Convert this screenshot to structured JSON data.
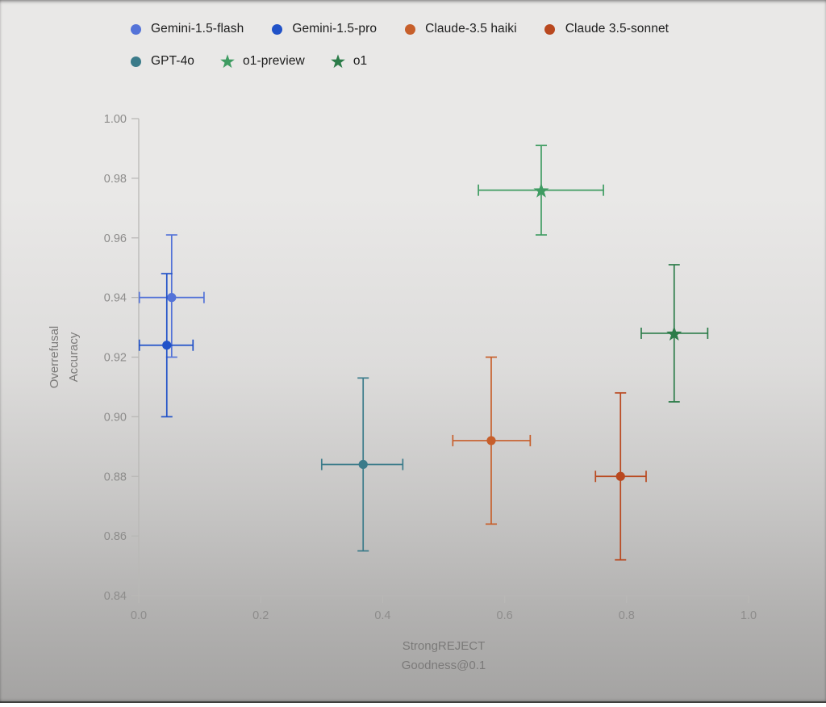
{
  "page": {
    "background_top": "#e9e8e7",
    "background_bottom": "#a4a3a2",
    "bottom_edge": "#343433"
  },
  "style": {
    "axis_line_color": "#b9b8b6",
    "tick_label_color": "#8d8c8b",
    "axis_title_color": "#7b7a79",
    "legend_text_color": "#1c1c1c"
  },
  "legend": {
    "rows": [
      [
        0,
        1,
        2,
        3
      ],
      [
        4,
        5,
        6
      ]
    ]
  },
  "chart_data": {
    "type": "scatter",
    "title": "",
    "xlabel": "StrongREJECT Goodness@0.1",
    "xlabel_lines": [
      "StrongREJECT",
      "Goodness@0.1"
    ],
    "ylabel": "Overrefusal Accuracy",
    "ylabel_lines": [
      "Overrefusal",
      "Accuracy"
    ],
    "xlim": [
      0.0,
      1.0
    ],
    "ylim": [
      0.84,
      1.0
    ],
    "x_ticks": [
      0.0,
      0.2,
      0.4,
      0.6,
      0.8,
      1.0
    ],
    "x_tick_labels": [
      "0.0",
      "0.2",
      "0.4",
      "0.6",
      "0.8",
      "1.0"
    ],
    "y_ticks": [
      0.84,
      0.86,
      0.88,
      0.9,
      0.92,
      0.94,
      0.96,
      0.98,
      1.0
    ],
    "y_tick_labels": [
      "0.84",
      "0.86",
      "0.88",
      "0.90",
      "0.92",
      "0.94",
      "0.96",
      "0.98",
      "1.00"
    ],
    "grid": false,
    "legend_position": "top-left",
    "series": [
      {
        "name": "Gemini-1.5-flash",
        "marker": "circle",
        "color": "#5473D8",
        "x": 0.054,
        "y": 0.94,
        "x_min": 0.001,
        "x_max": 0.107,
        "y_min": 0.92,
        "y_max": 0.961
      },
      {
        "name": "Gemini-1.5-pro",
        "marker": "circle",
        "color": "#2152C8",
        "x": 0.046,
        "y": 0.924,
        "x_min": 0.001,
        "x_max": 0.089,
        "y_min": 0.9,
        "y_max": 0.948
      },
      {
        "name": "Claude-3.5 haiki",
        "marker": "circle",
        "color": "#C75F2B",
        "x": 0.578,
        "y": 0.892,
        "x_min": 0.515,
        "x_max": 0.642,
        "y_min": 0.864,
        "y_max": 0.92
      },
      {
        "name": "Claude 3.5-sonnet",
        "marker": "circle",
        "color": "#B9481F",
        "x": 0.79,
        "y": 0.88,
        "x_min": 0.749,
        "x_max": 0.832,
        "y_min": 0.852,
        "y_max": 0.908
      },
      {
        "name": "GPT-4o",
        "marker": "circle",
        "color": "#3B7B8A",
        "x": 0.368,
        "y": 0.884,
        "x_min": 0.3,
        "x_max": 0.433,
        "y_min": 0.855,
        "y_max": 0.913
      },
      {
        "name": "o1-preview",
        "marker": "star",
        "color": "#3F9C62",
        "x": 0.66,
        "y": 0.976,
        "x_min": 0.557,
        "x_max": 0.762,
        "y_min": 0.961,
        "y_max": 0.991
      },
      {
        "name": "o1",
        "marker": "star",
        "color": "#2C7C49",
        "x": 0.878,
        "y": 0.928,
        "x_min": 0.824,
        "x_max": 0.933,
        "y_min": 0.905,
        "y_max": 0.951
      }
    ]
  }
}
